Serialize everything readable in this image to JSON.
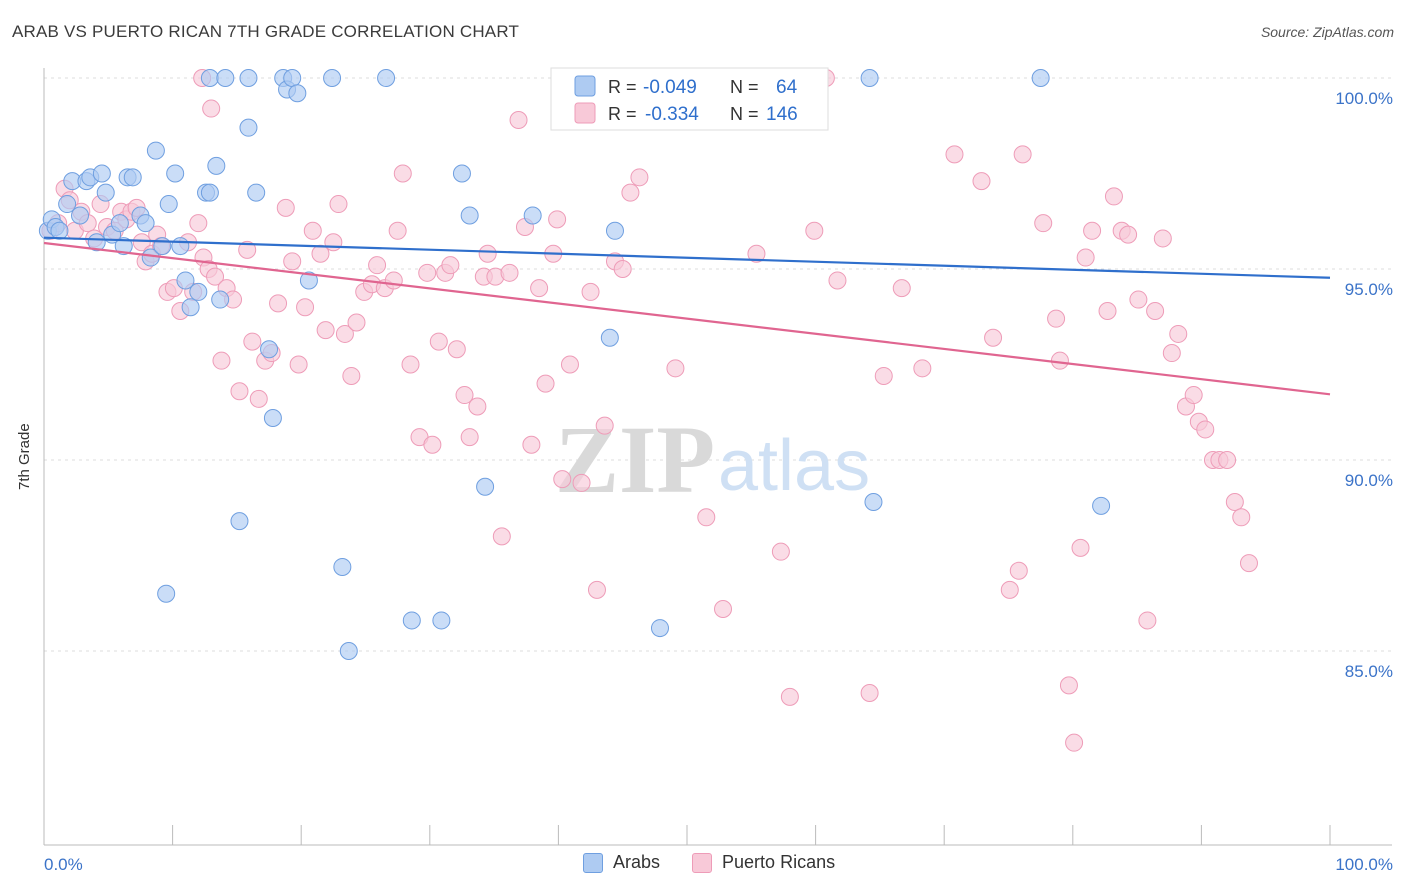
{
  "header": {
    "title": "ARAB VS PUERTO RICAN 7TH GRADE CORRELATION CHART",
    "source": "Source: ZipAtlas.com"
  },
  "watermark": {
    "zip": "ZIP",
    "atlas": "atlas"
  },
  "chart_data": {
    "type": "scatter",
    "title": "ARAB VS PUERTO RICAN 7TH GRADE CORRELATION CHART",
    "xlabel": "",
    "ylabel": "7th Grade",
    "xlim": [
      0,
      100
    ],
    "ylim": [
      80.5,
      101.3
    ],
    "x_tick_labels": [
      {
        "value": 0,
        "label": "0.0%"
      },
      {
        "value": 100,
        "label": "100.0%"
      }
    ],
    "y_tick_labels": [
      {
        "value": 100,
        "label": "100.0%"
      },
      {
        "value": 95,
        "label": "95.0%"
      },
      {
        "value": 90,
        "label": "90.0%"
      },
      {
        "value": 85,
        "label": "85.0%"
      }
    ],
    "grid": "horizontal dashed",
    "legend_placement": "top-center",
    "stats_legend": [
      {
        "r_label": "R =",
        "r_value": "-0.049",
        "n_label": "N =",
        "n_value": "64"
      },
      {
        "r_label": "R =",
        "r_value": "-0.334",
        "n_label": "N =",
        "n_value": "146"
      }
    ],
    "series": [
      {
        "name": "Arabs",
        "color": "#6f9fe0",
        "fill": "#aecbf2",
        "trend_color": "#2f6fcc",
        "trend": [
          [
            0,
            95.82
          ],
          [
            100,
            94.77
          ]
        ],
        "points": [
          [
            0.3,
            96.0
          ],
          [
            0.6,
            96.3
          ],
          [
            0.9,
            96.1
          ],
          [
            1.2,
            96.0
          ],
          [
            1.8,
            96.7
          ],
          [
            2.2,
            97.3
          ],
          [
            2.8,
            96.4
          ],
          [
            3.3,
            97.3
          ],
          [
            3.6,
            97.4
          ],
          [
            4.1,
            95.7
          ],
          [
            4.5,
            97.5
          ],
          [
            4.8,
            97.0
          ],
          [
            5.3,
            95.9
          ],
          [
            5.9,
            96.2
          ],
          [
            6.2,
            95.6
          ],
          [
            6.5,
            97.4
          ],
          [
            6.9,
            97.4
          ],
          [
            7.5,
            96.4
          ],
          [
            7.9,
            96.2
          ],
          [
            8.3,
            95.3
          ],
          [
            8.7,
            98.1
          ],
          [
            9.2,
            95.6
          ],
          [
            9.7,
            96.7
          ],
          [
            10.2,
            97.5
          ],
          [
            10.6,
            95.6
          ],
          [
            11.0,
            94.7
          ],
          [
            11.4,
            94.0
          ],
          [
            12.0,
            94.4
          ],
          [
            12.6,
            97.0
          ],
          [
            12.9,
            97.0
          ],
          [
            13.4,
            97.7
          ],
          [
            13.7,
            94.2
          ],
          [
            15.2,
            88.4
          ],
          [
            15.9,
            98.7
          ],
          [
            16.5,
            97.0
          ],
          [
            17.5,
            92.9
          ],
          [
            17.8,
            91.1
          ],
          [
            18.6,
            100.0
          ],
          [
            18.9,
            99.7
          ],
          [
            19.3,
            100.0
          ],
          [
            19.7,
            99.6
          ],
          [
            20.6,
            94.7
          ],
          [
            12.9,
            100.0
          ],
          [
            14.1,
            100.0
          ],
          [
            15.9,
            100.0
          ],
          [
            22.4,
            100.0
          ],
          [
            26.6,
            100.0
          ],
          [
            23.2,
            87.2
          ],
          [
            9.5,
            86.5
          ],
          [
            23.7,
            85.0
          ],
          [
            28.6,
            85.8
          ],
          [
            30.9,
            85.8
          ],
          [
            34.3,
            89.3
          ],
          [
            32.5,
            97.5
          ],
          [
            33.1,
            96.4
          ],
          [
            38.0,
            96.4
          ],
          [
            44.4,
            96.0
          ],
          [
            44.0,
            93.2
          ],
          [
            47.9,
            85.6
          ],
          [
            50.1,
            100.0
          ],
          [
            64.2,
            100.0
          ],
          [
            77.5,
            100.0
          ],
          [
            64.5,
            88.9
          ],
          [
            82.2,
            88.8
          ]
        ]
      },
      {
        "name": "Puerto Ricans",
        "color": "#ee9cb8",
        "fill": "#f8c9d8",
        "trend_color": "#e06590",
        "trend": [
          [
            0,
            95.68
          ],
          [
            100,
            91.72
          ]
        ],
        "points": [
          [
            0.5,
            96.0
          ],
          [
            1.1,
            96.2
          ],
          [
            1.6,
            97.1
          ],
          [
            2.0,
            96.8
          ],
          [
            2.4,
            96.0
          ],
          [
            2.9,
            96.5
          ],
          [
            3.4,
            96.2
          ],
          [
            3.9,
            95.8
          ],
          [
            4.4,
            96.7
          ],
          [
            4.9,
            96.1
          ],
          [
            5.5,
            96.0
          ],
          [
            6.0,
            96.5
          ],
          [
            6.4,
            96.3
          ],
          [
            6.8,
            96.5
          ],
          [
            7.2,
            96.6
          ],
          [
            7.6,
            95.7
          ],
          [
            7.9,
            95.2
          ],
          [
            8.4,
            95.4
          ],
          [
            8.8,
            95.9
          ],
          [
            9.1,
            95.6
          ],
          [
            9.6,
            94.4
          ],
          [
            10.1,
            94.5
          ],
          [
            10.6,
            93.9
          ],
          [
            11.2,
            95.7
          ],
          [
            11.6,
            94.4
          ],
          [
            12.0,
            96.2
          ],
          [
            12.4,
            95.3
          ],
          [
            12.8,
            95.0
          ],
          [
            13.3,
            94.8
          ],
          [
            13.8,
            92.6
          ],
          [
            14.2,
            94.5
          ],
          [
            14.7,
            94.2
          ],
          [
            15.2,
            91.8
          ],
          [
            15.8,
            95.5
          ],
          [
            16.2,
            93.1
          ],
          [
            16.7,
            91.6
          ],
          [
            17.2,
            92.6
          ],
          [
            17.7,
            92.8
          ],
          [
            18.2,
            94.1
          ],
          [
            18.8,
            96.6
          ],
          [
            19.3,
            95.2
          ],
          [
            19.8,
            92.5
          ],
          [
            20.3,
            94.0
          ],
          [
            20.9,
            96.0
          ],
          [
            21.5,
            95.4
          ],
          [
            21.9,
            93.4
          ],
          [
            22.5,
            95.7
          ],
          [
            22.9,
            96.7
          ],
          [
            23.4,
            93.3
          ],
          [
            23.9,
            92.2
          ],
          [
            24.3,
            93.6
          ],
          [
            24.9,
            94.4
          ],
          [
            25.5,
            94.6
          ],
          [
            25.9,
            95.1
          ],
          [
            26.5,
            94.5
          ],
          [
            27.2,
            94.7
          ],
          [
            27.5,
            96.0
          ],
          [
            27.9,
            97.5
          ],
          [
            28.5,
            92.5
          ],
          [
            29.2,
            90.6
          ],
          [
            29.8,
            94.9
          ],
          [
            30.2,
            90.4
          ],
          [
            30.7,
            93.1
          ],
          [
            31.2,
            94.9
          ],
          [
            31.6,
            95.1
          ],
          [
            32.1,
            92.9
          ],
          [
            32.7,
            91.7
          ],
          [
            33.1,
            90.6
          ],
          [
            33.7,
            91.4
          ],
          [
            34.2,
            94.8
          ],
          [
            34.5,
            95.4
          ],
          [
            35.1,
            94.8
          ],
          [
            35.6,
            88.0
          ],
          [
            36.2,
            94.9
          ],
          [
            36.9,
            98.9
          ],
          [
            37.4,
            96.1
          ],
          [
            37.9,
            90.4
          ],
          [
            38.5,
            94.5
          ],
          [
            39.0,
            92.0
          ],
          [
            39.6,
            95.4
          ],
          [
            39.9,
            96.3
          ],
          [
            40.3,
            89.5
          ],
          [
            40.9,
            92.5
          ],
          [
            41.8,
            89.4
          ],
          [
            42.5,
            94.4
          ],
          [
            43.0,
            86.6
          ],
          [
            43.6,
            90.9
          ],
          [
            44.4,
            95.2
          ],
          [
            45.0,
            95.0
          ],
          [
            45.6,
            97.0
          ],
          [
            46.3,
            97.4
          ],
          [
            47.5,
            100.0
          ],
          [
            49.1,
            92.4
          ],
          [
            51.5,
            88.5
          ],
          [
            52.4,
            100.0
          ],
          [
            52.8,
            86.1
          ],
          [
            55.4,
            95.4
          ],
          [
            56.3,
            100.0
          ],
          [
            57.3,
            87.6
          ],
          [
            58.0,
            83.8
          ],
          [
            59.5,
            100.0
          ],
          [
            59.9,
            96.0
          ],
          [
            60.8,
            100.0
          ],
          [
            61.7,
            94.7
          ],
          [
            64.2,
            83.9
          ],
          [
            65.3,
            92.2
          ],
          [
            66.7,
            94.5
          ],
          [
            68.3,
            92.4
          ],
          [
            70.8,
            98.0
          ],
          [
            72.9,
            97.3
          ],
          [
            73.8,
            93.2
          ],
          [
            75.1,
            86.6
          ],
          [
            75.8,
            87.1
          ],
          [
            76.1,
            98.0
          ],
          [
            77.7,
            96.2
          ],
          [
            78.7,
            93.7
          ],
          [
            79.0,
            92.6
          ],
          [
            79.7,
            84.1
          ],
          [
            80.1,
            82.6
          ],
          [
            80.6,
            87.7
          ],
          [
            81.0,
            95.3
          ],
          [
            81.5,
            96.0
          ],
          [
            82.7,
            93.9
          ],
          [
            83.2,
            96.9
          ],
          [
            83.8,
            96.0
          ],
          [
            84.3,
            95.9
          ],
          [
            85.1,
            94.2
          ],
          [
            85.8,
            85.8
          ],
          [
            86.4,
            93.9
          ],
          [
            87.0,
            95.8
          ],
          [
            87.7,
            92.8
          ],
          [
            88.2,
            93.3
          ],
          [
            88.8,
            91.4
          ],
          [
            89.4,
            91.7
          ],
          [
            89.8,
            91.0
          ],
          [
            90.3,
            90.8
          ],
          [
            90.9,
            90.0
          ],
          [
            91.4,
            90.0
          ],
          [
            92.0,
            90.0
          ],
          [
            92.6,
            88.9
          ],
          [
            93.1,
            88.5
          ],
          [
            93.7,
            87.3
          ],
          [
            12.3,
            100.0
          ],
          [
            13.0,
            99.2
          ]
        ]
      }
    ]
  }
}
